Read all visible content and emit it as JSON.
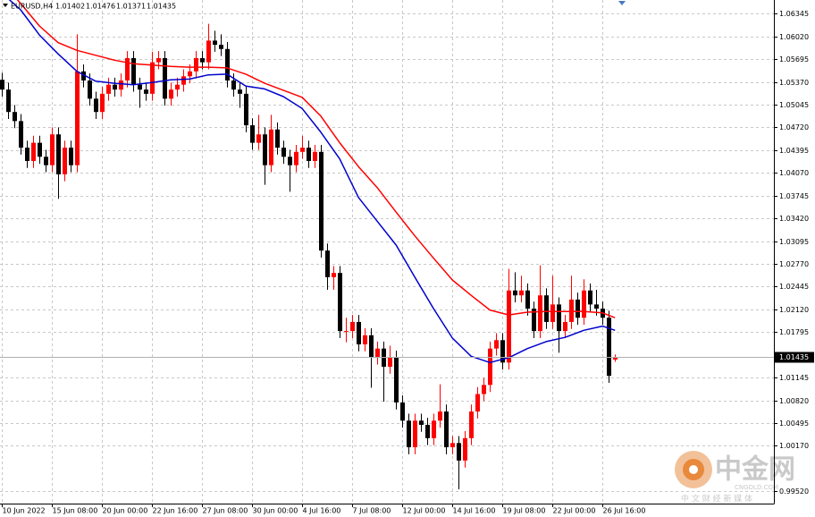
{
  "chart_data": {
    "type": "candlestick",
    "symbol": "EURUSD,H4",
    "bull_color": "#ff0000",
    "bear_color": "#000000",
    "grid": true,
    "xlim": [
      -0.3,
      123.4
    ],
    "ylim": [
      0.99345,
      1.0654
    ],
    "xticks": [
      {
        "value": 0,
        "label": "10 Jun 2022"
      },
      {
        "value": 8,
        "label": "15 Jun 08:00"
      },
      {
        "value": 16,
        "label": "20 Jun 00:00"
      },
      {
        "value": 24,
        "label": "22 Jun 16:00"
      },
      {
        "value": 32,
        "label": "27 Jun 08:00"
      },
      {
        "value": 40,
        "label": "30 Jun 00:00"
      },
      {
        "value": 48,
        "label": "4 Jul 16:00"
      },
      {
        "value": 56,
        "label": "7 Jul 08:00"
      },
      {
        "value": 64,
        "label": "12 Jul 00:00"
      },
      {
        "value": 72,
        "label": "14 Jul 16:00"
      },
      {
        "value": 80,
        "label": "19 Jul 08:00"
      },
      {
        "value": 88,
        "label": "22 Jul 00:00"
      },
      {
        "value": 96,
        "label": "26 Jul 16:00"
      }
    ],
    "yticks": [
      1.06345,
      {
        "value": 1.0602,
        "label": "1.06020"
      },
      1.05695,
      {
        "value": 1.0537,
        "label": "1.05370"
      },
      1.05045,
      {
        "value": 1.0472,
        "label": "1.04720"
      },
      1.04395,
      {
        "value": 1.0407,
        "label": "1.04070"
      },
      1.03745,
      {
        "value": 1.0342,
        "label": "1.03420"
      },
      1.03095,
      {
        "value": 1.0277,
        "label": "1.02770"
      },
      1.02445,
      {
        "value": 1.0212,
        "label": "1.02120"
      },
      1.01795,
      1.01145,
      {
        "value": 1.0082,
        "label": "1.00820"
      },
      1.00495,
      {
        "value": 1.0017,
        "label": "1.00170"
      },
      {
        "value": 0.9952,
        "label": "0.99520"
      }
    ],
    "open": [
      1.054,
      1.0526,
      1.0494,
      1.0481,
      1.0443,
      1.0424,
      1.045,
      1.043,
      1.0418,
      1.0462,
      1.0405,
      1.0443,
      1.0418,
      1.0552,
      1.0539,
      1.0513,
      1.0494,
      1.052,
      1.0533,
      1.0526,
      1.0539,
      1.0571,
      1.0533,
      1.0526,
      1.052,
      1.0565,
      1.0571,
      1.0513,
      1.0526,
      1.0533,
      1.0545,
      1.0552,
      1.0571,
      1.0565,
      1.0596,
      1.059,
      1.0584,
      1.0539,
      1.0526,
      1.052,
      1.0475,
      1.045,
      1.0462,
      1.0418,
      1.0469,
      1.0443,
      1.043,
      1.0418,
      1.0437,
      1.0443,
      1.0424,
      1.0437,
      1.0296,
      1.0258,
      1.0264,
      1.0181,
      1.0181,
      1.0194,
      1.0162,
      1.0175,
      1.0143,
      1.0156,
      1.013,
      1.0143,
      1.0079,
      1.0053,
      1.0015,
      1.0053,
      1.0047,
      1.0028,
      1.0053,
      1.0066,
      1.0015,
      1.0021,
      0.9996,
      1.0028,
      1.0066,
      1.0091,
      1.0104,
      1.0156,
      1.0168,
      1.0136,
      1.0239,
      1.0232,
      1.0239,
      1.0213,
      1.0181,
      1.0232,
      1.0194,
      1.0219,
      1.0181,
      1.0194,
      1.0226,
      1.02,
      1.0239,
      1.0219,
      1.0213,
      1.02,
      1.01402
    ],
    "high": [
      1.055,
      1.0536,
      1.0504,
      1.0491,
      1.0453,
      1.046,
      1.046,
      1.044,
      1.0472,
      1.0472,
      1.0453,
      1.0453,
      1.0605,
      1.0562,
      1.0549,
      1.0523,
      1.053,
      1.0543,
      1.0543,
      1.0549,
      1.0581,
      1.0581,
      1.0543,
      1.0536,
      1.058,
      1.0581,
      1.0581,
      1.0536,
      1.0543,
      1.0555,
      1.0562,
      1.0581,
      1.0581,
      1.062,
      1.061,
      1.0605,
      1.0594,
      1.0549,
      1.0536,
      1.053,
      1.0485,
      1.049,
      1.0472,
      1.049,
      1.0479,
      1.0453,
      1.044,
      1.0447,
      1.046,
      1.0453,
      1.0447,
      1.0447,
      1.0306,
      1.0274,
      1.0274,
      1.02,
      1.0204,
      1.0204,
      1.0185,
      1.0185,
      1.0166,
      1.0166,
      1.016,
      1.0153,
      1.0089,
      1.0063,
      1.0063,
      1.0063,
      1.0057,
      1.0063,
      1.0105,
      1.0076,
      1.0031,
      1.0031,
      1.0038,
      1.0076,
      1.0101,
      1.0114,
      1.0166,
      1.0178,
      1.0178,
      1.027,
      1.0265,
      1.026,
      1.0249,
      1.0223,
      1.0275,
      1.0242,
      1.026,
      1.0229,
      1.0204,
      1.026,
      1.0236,
      1.0255,
      1.0249,
      1.024,
      1.0223,
      1.021,
      1.01476
    ],
    "low": [
      1.0516,
      1.0484,
      1.0471,
      1.0433,
      1.0414,
      1.0414,
      1.042,
      1.0408,
      1.0408,
      1.037,
      1.0395,
      1.0408,
      1.0408,
      1.0529,
      1.0503,
      1.0484,
      1.0484,
      1.051,
      1.0516,
      1.0516,
      1.0529,
      1.0523,
      1.05,
      1.051,
      1.051,
      1.0555,
      1.0503,
      1.0503,
      1.0516,
      1.0523,
      1.0535,
      1.0542,
      1.0555,
      1.0555,
      1.058,
      1.0574,
      1.0529,
      1.0516,
      1.05,
      1.0465,
      1.044,
      1.044,
      1.039,
      1.0408,
      1.0433,
      1.042,
      1.038,
      1.0408,
      1.0427,
      1.0414,
      1.0414,
      1.0286,
      1.024,
      1.024,
      1.0171,
      1.0165,
      1.0171,
      1.0152,
      1.0152,
      1.01,
      1.0133,
      1.008,
      1.012,
      1.0069,
      1.0043,
      1.0005,
      1.0005,
      1.0037,
      1.0018,
      1.0018,
      1.0043,
      1.0005,
      1.0005,
      0.9955,
      0.9986,
      1.0018,
      1.0056,
      1.0081,
      1.0094,
      1.0146,
      1.0126,
      1.0126,
      1.0222,
      1.0222,
      1.0203,
      1.0171,
      1.0171,
      1.0184,
      1.0184,
      1.015,
      1.0171,
      1.0184,
      1.019,
      1.019,
      1.0209,
      1.0203,
      1.019,
      1.0107,
      1.01371
    ],
    "close": [
      1.0526,
      1.0494,
      1.0481,
      1.0443,
      1.0424,
      1.045,
      1.043,
      1.0418,
      1.0462,
      1.0405,
      1.0443,
      1.0418,
      1.0552,
      1.0539,
      1.0513,
      1.0494,
      1.052,
      1.0533,
      1.0526,
      1.0539,
      1.0571,
      1.0533,
      1.0526,
      1.052,
      1.0565,
      1.0571,
      1.0513,
      1.0526,
      1.0533,
      1.0545,
      1.0552,
      1.0571,
      1.0565,
      1.0596,
      1.059,
      1.0584,
      1.0539,
      1.0526,
      1.052,
      1.0475,
      1.045,
      1.0462,
      1.0418,
      1.0469,
      1.0443,
      1.043,
      1.0418,
      1.0437,
      1.0443,
      1.0424,
      1.0437,
      1.0296,
      1.0258,
      1.0264,
      1.0181,
      1.0181,
      1.0194,
      1.0162,
      1.0175,
      1.0143,
      1.0156,
      1.013,
      1.0143,
      1.0079,
      1.0053,
      1.0015,
      1.0053,
      1.0047,
      1.0028,
      1.0053,
      1.0066,
      1.0015,
      1.0021,
      0.9996,
      1.0028,
      1.0066,
      1.0091,
      1.0104,
      1.0156,
      1.0168,
      1.0136,
      1.0239,
      1.0232,
      1.0239,
      1.0213,
      1.0181,
      1.0232,
      1.0194,
      1.0219,
      1.0181,
      1.0194,
      1.0226,
      1.02,
      1.0239,
      1.0219,
      1.0213,
      1.02,
      1.0117,
      1.01435
    ],
    "series": [
      {
        "color": "#ff0000",
        "x": [
          0,
          3,
          6,
          9,
          12,
          15,
          18,
          21,
          24,
          27,
          30,
          33,
          36,
          39,
          42,
          45,
          48,
          51,
          54,
          57,
          60,
          63,
          66,
          69,
          72,
          75,
          78,
          81,
          84,
          87,
          90,
          93,
          96,
          98
        ],
        "values": [
          1.068,
          1.0649,
          1.0617,
          1.0593,
          1.0582,
          1.0575,
          1.0568,
          1.0563,
          1.0561,
          1.0559,
          1.0558,
          1.0558,
          1.0557,
          1.0548,
          1.0535,
          1.0525,
          1.0515,
          1.0488,
          1.045,
          1.0416,
          1.0386,
          1.0351,
          1.0317,
          1.0285,
          1.0254,
          1.0232,
          1.0211,
          1.0204,
          1.0208,
          1.0209,
          1.0209,
          1.0209,
          1.0207,
          1.02
        ]
      },
      {
        "color": "#0000cc",
        "x": [
          0,
          3,
          6,
          9,
          12,
          15,
          18,
          21,
          24,
          27,
          30,
          33,
          36,
          39,
          42,
          45,
          48,
          51,
          54,
          57,
          60,
          63,
          66,
          69,
          72,
          75,
          78,
          81,
          84,
          87,
          90,
          93,
          96,
          98
        ],
        "values": [
          1.0664,
          1.064,
          1.0604,
          1.0577,
          1.0552,
          1.0538,
          1.0535,
          1.0533,
          1.0536,
          1.054,
          1.0541,
          1.0547,
          1.0548,
          1.0531,
          1.0527,
          1.0516,
          1.0499,
          1.0465,
          1.0427,
          1.0372,
          1.0338,
          1.0304,
          1.0258,
          1.0213,
          1.0171,
          1.0145,
          1.0136,
          1.0143,
          1.0156,
          1.0166,
          1.0172,
          1.0182,
          1.0188,
          1.0182
        ]
      }
    ]
  },
  "watermark": {
    "brand": "中金网",
    "site": "CNGOLD.COM",
    "slogan": "中 文 财 经 新 媒 体"
  }
}
